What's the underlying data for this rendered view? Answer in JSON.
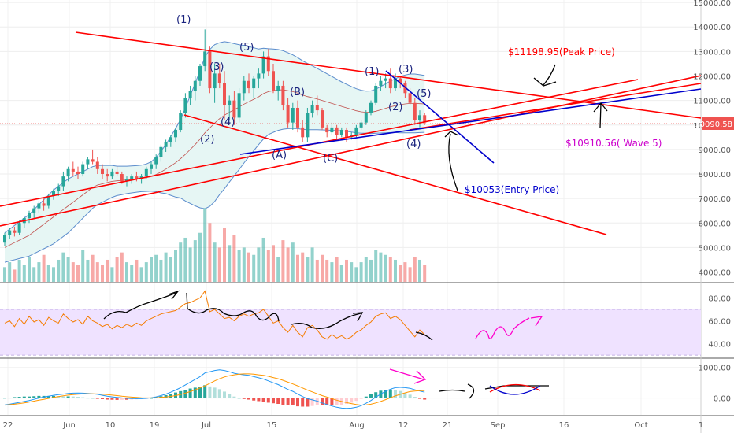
{
  "colors": {
    "up": "#26a69a",
    "down": "#ef5350",
    "trendline": "#ff0000",
    "blue_line": "#0000cc",
    "bollinger": "#5b8ccc",
    "bb_fill": "#e6f6f4",
    "rsi_band": "#efe2ff",
    "rsi_line": "#f57c00",
    "macd_line": "#2196f3",
    "signal_line": "#ff9800",
    "annotation_magenta": "#cc00cc",
    "pink_scribble": "#ff00cc"
  },
  "chart_data": [
    {
      "type": "candlestick",
      "title": "",
      "y_axis": {
        "ticks": [
          "15000.00",
          "14000.00",
          "13000.00",
          "12000.00",
          "11000.00",
          "10000.00",
          "9000.00",
          "8000.00",
          "7000.00",
          "6000.00",
          "5000.00",
          "4000.00"
        ],
        "ylim": [
          3600,
          15100
        ]
      },
      "x_axis": {
        "ticks": [
          "22",
          "Jun",
          "10",
          "19",
          "Jul",
          "15",
          "Aug",
          "12",
          "21",
          "Sep",
          "16",
          "Oct",
          "1"
        ]
      },
      "current_price": "10090.58",
      "ohlc": [
        [
          5200,
          5600,
          5050,
          5500
        ],
        [
          5500,
          5800,
          5350,
          5700
        ],
        [
          5700,
          5850,
          5450,
          5600
        ],
        [
          5600,
          6100,
          5500,
          6000
        ],
        [
          6000,
          6300,
          5800,
          6200
        ],
        [
          6200,
          6500,
          6000,
          6400
        ],
        [
          6400,
          6700,
          6200,
          6600
        ],
        [
          6600,
          6900,
          6400,
          6800
        ],
        [
          6800,
          7000,
          6500,
          6700
        ],
        [
          6700,
          7200,
          6600,
          7100
        ],
        [
          7100,
          7400,
          6950,
          7300
        ],
        [
          7300,
          7600,
          7100,
          7500
        ],
        [
          7500,
          8100,
          7300,
          7900
        ],
        [
          7900,
          8300,
          7700,
          8200
        ],
        [
          8200,
          8500,
          7900,
          8100
        ],
        [
          8100,
          8300,
          7800,
          8000
        ],
        [
          8000,
          8500,
          7900,
          8400
        ],
        [
          8400,
          8700,
          8200,
          8600
        ],
        [
          8600,
          9000,
          8400,
          8500
        ],
        [
          8500,
          8700,
          8000,
          8200
        ],
        [
          8200,
          8400,
          7800,
          8000
        ],
        [
          8000,
          8200,
          7700,
          7900
        ],
        [
          7900,
          8200,
          7800,
          8100
        ],
        [
          8100,
          8300,
          7900,
          8000
        ],
        [
          8000,
          8100,
          7600,
          7700
        ],
        [
          7700,
          7900,
          7500,
          7800
        ],
        [
          7800,
          8000,
          7600,
          7900
        ],
        [
          7900,
          8100,
          7700,
          7800
        ],
        [
          7800,
          8000,
          7600,
          7900
        ],
        [
          7900,
          8300,
          7800,
          8200
        ],
        [
          8200,
          8500,
          8000,
          8400
        ],
        [
          8400,
          8800,
          8200,
          8700
        ],
        [
          8700,
          9200,
          8500,
          9100
        ],
        [
          9100,
          9400,
          8900,
          9300
        ],
        [
          9300,
          9600,
          9100,
          9500
        ],
        [
          9500,
          9900,
          9300,
          9800
        ],
        [
          9800,
          10600,
          9700,
          10500
        ],
        [
          10500,
          11300,
          10300,
          11100
        ],
        [
          11100,
          11600,
          10800,
          11400
        ],
        [
          11400,
          12000,
          11000,
          11800
        ],
        [
          11800,
          12500,
          11600,
          12400
        ],
        [
          12400,
          13900,
          12200,
          13000
        ],
        [
          13000,
          13200,
          11300,
          11500
        ],
        [
          11500,
          12500,
          10900,
          12100
        ],
        [
          12100,
          12500,
          11500,
          11700
        ],
        [
          11700,
          12200,
          10200,
          10800
        ],
        [
          10800,
          11200,
          10200,
          11000
        ],
        [
          11000,
          11400,
          10000,
          10300
        ],
        [
          10300,
          11500,
          10100,
          11300
        ],
        [
          11300,
          12000,
          11000,
          11800
        ],
        [
          11800,
          12100,
          11300,
          11500
        ],
        [
          11500,
          12000,
          11100,
          11900
        ],
        [
          11900,
          12300,
          11500,
          12100
        ],
        [
          12100,
          13000,
          11900,
          12800
        ],
        [
          12800,
          13100,
          12000,
          12200
        ],
        [
          12200,
          12500,
          11300,
          11400
        ],
        [
          11400,
          11800,
          11000,
          11600
        ],
        [
          11600,
          11800,
          10600,
          10800
        ],
        [
          10800,
          11100,
          9900,
          10100
        ],
        [
          10100,
          10900,
          9800,
          10700
        ],
        [
          10700,
          11000,
          9700,
          9900
        ],
        [
          9900,
          10200,
          9300,
          9500
        ],
        [
          9500,
          10700,
          9300,
          10500
        ],
        [
          10500,
          11000,
          10300,
          10800
        ],
        [
          10800,
          11200,
          10400,
          10600
        ],
        [
          10600,
          10700,
          9800,
          9900
        ],
        [
          9900,
          10000,
          9500,
          9700
        ],
        [
          9700,
          10100,
          9600,
          9900
        ],
        [
          9900,
          10000,
          9400,
          9600
        ],
        [
          9600,
          9900,
          9500,
          9800
        ],
        [
          9800,
          9900,
          9300,
          9500
        ],
        [
          9500,
          9700,
          9400,
          9600
        ],
        [
          9600,
          10000,
          9500,
          9900
        ],
        [
          9900,
          10200,
          9800,
          10100
        ],
        [
          10100,
          10600,
          10000,
          10500
        ],
        [
          10500,
          11000,
          10400,
          10900
        ],
        [
          10900,
          11700,
          10800,
          11600
        ],
        [
          11600,
          12000,
          11400,
          11800
        ],
        [
          11800,
          12100,
          11500,
          11900
        ],
        [
          11900,
          12300,
          11300,
          11500
        ],
        [
          11500,
          12100,
          11400,
          11900
        ],
        [
          11900,
          12000,
          11500,
          11700
        ],
        [
          11700,
          11800,
          11100,
          11300
        ],
        [
          11300,
          11500,
          10800,
          10900
        ],
        [
          10900,
          11100,
          10000,
          10200
        ],
        [
          10200,
          10600,
          9900,
          10400
        ],
        [
          10400,
          10500,
          10000,
          10100
        ]
      ],
      "volume": [
        4.2,
        4.4,
        4.1,
        4.5,
        4.3,
        4.6,
        4.2,
        4.4,
        4.7,
        4.3,
        4.2,
        4.5,
        4.8,
        4.6,
        4.4,
        4.3,
        4.9,
        4.5,
        4.7,
        4.4,
        4.3,
        4.5,
        4.2,
        4.6,
        4.8,
        4.4,
        4.3,
        4.5,
        4.2,
        4.4,
        4.6,
        4.7,
        4.5,
        4.8,
        4.6,
        4.9,
        5.2,
        5.4,
        5.0,
        5.3,
        5.6,
        6.6,
        6.0,
        5.2,
        5.0,
        5.8,
        5.1,
        5.5,
        4.9,
        5.0,
        4.8,
        4.7,
        5.0,
        5.4,
        4.9,
        5.1,
        4.6,
        5.3,
        5.0,
        5.2,
        4.7,
        4.8,
        4.6,
        5.0,
        4.5,
        4.7,
        4.5,
        4.4,
        4.6,
        4.3,
        4.5,
        4.4,
        4.2,
        4.4,
        4.6,
        4.5,
        4.9,
        4.8,
        4.7,
        4.6,
        4.5,
        4.3,
        4.4,
        4.2,
        4.6,
        4.5,
        4.3
      ],
      "bollinger_mid": [
        5000,
        5100,
        5200,
        5300,
        5400,
        5500,
        5650,
        5800,
        5950,
        6100,
        6250,
        6400,
        6550,
        6700,
        6850,
        7000,
        7150,
        7300,
        7450,
        7550,
        7600,
        7650,
        7700,
        7720,
        7740,
        7760,
        7780,
        7800,
        7820,
        7850,
        7900,
        7980,
        8080,
        8200,
        8330,
        8460,
        8620,
        8800,
        9000,
        9200,
        9420,
        9680,
        9880,
        10080,
        10260,
        10400,
        10520,
        10620,
        10730,
        10850,
        10950,
        11050,
        11150,
        11280,
        11360,
        11400,
        11430,
        11430,
        11400,
        11360,
        11300,
        11220,
        11160,
        11110,
        11060,
        11000,
        10940,
        10880,
        10820,
        10760,
        10700,
        10640,
        10580,
        10540,
        10520,
        10520,
        10560,
        10620,
        10680,
        10740,
        10790,
        10830,
        10860,
        10880,
        10880,
        10870,
        10860
      ],
      "bollinger_width": [
        600,
        650,
        700,
        750,
        800,
        850,
        900,
        950,
        1000,
        1050,
        1100,
        1100,
        1100,
        1100,
        1050,
        1000,
        950,
        900,
        850,
        800,
        750,
        700,
        650,
        600,
        580,
        560,
        550,
        540,
        540,
        560,
        600,
        700,
        850,
        1000,
        1200,
        1400,
        1600,
        1900,
        2200,
        2500,
        2800,
        3100,
        3200,
        3200,
        3100,
        3000,
        2850,
        2700,
        2550,
        2400,
        2250,
        2100,
        1950,
        1850,
        1750,
        1700,
        1650,
        1600,
        1550,
        1500,
        1450,
        1400,
        1350,
        1300,
        1250,
        1200,
        1150,
        1100,
        1050,
        1000,
        960,
        930,
        900,
        880,
        860,
        870,
        900,
        950,
        1000,
        1050,
        1100,
        1150,
        1180,
        1200,
        1200,
        1180,
        1160
      ],
      "annotations": {
        "waves": [
          "(1)",
          "(2)",
          "(3)",
          "(4)",
          "(5)",
          "(A)",
          "(B)",
          "(C)",
          "(1)",
          "(2)",
          "(3)",
          "(4)",
          "(5)"
        ],
        "peak_price": "$11198.95(Peak Price)",
        "wave5": "$10910.56( Wave 5)",
        "entry": "$10053(Entry Price)"
      }
    },
    {
      "type": "line",
      "title": "",
      "y_axis": {
        "ticks": [
          "80.00",
          "60.00",
          "40.00"
        ],
        "ylim": [
          28,
          92
        ]
      },
      "band": [
        30,
        70
      ],
      "values": [
        58,
        60,
        55,
        62,
        57,
        64,
        59,
        61,
        56,
        63,
        60,
        58,
        66,
        62,
        59,
        61,
        57,
        64,
        60,
        58,
        55,
        57,
        53,
        56,
        54,
        57,
        55,
        58,
        56,
        60,
        62,
        64,
        66,
        67,
        68,
        69,
        72,
        75,
        76,
        78,
        80,
        86,
        68,
        70,
        66,
        62,
        63,
        60,
        64,
        66,
        64,
        66,
        67,
        70,
        64,
        58,
        60,
        54,
        50,
        56,
        50,
        46,
        54,
        56,
        52,
        46,
        44,
        48,
        45,
        47,
        44,
        46,
        50,
        52,
        56,
        59,
        64,
        66,
        67,
        62,
        64,
        61,
        56,
        51,
        46,
        52,
        48
      ]
    },
    {
      "type": "bar",
      "title": "",
      "y_axis": {
        "ticks": [
          "1000.00",
          "0.00"
        ],
        "ylim": [
          -550,
          1250
        ]
      },
      "macd": [
        -220,
        -200,
        -170,
        -140,
        -110,
        -80,
        -40,
        0,
        30,
        60,
        90,
        110,
        130,
        150,
        160,
        165,
        160,
        150,
        140,
        120,
        90,
        60,
        40,
        20,
        5,
        -10,
        -15,
        -20,
        -20,
        -10,
        10,
        40,
        80,
        130,
        190,
        260,
        340,
        430,
        520,
        610,
        700,
        820,
        860,
        900,
        920,
        900,
        860,
        810,
        780,
        760,
        740,
        700,
        660,
        620,
        560,
        500,
        440,
        360,
        280,
        220,
        130,
        50,
        -20,
        -60,
        -100,
        -160,
        -210,
        -260,
        -300,
        -330,
        -340,
        -330,
        -300,
        -250,
        -170,
        -80,
        30,
        130,
        220,
        290,
        340,
        350,
        340,
        320,
        270,
        230,
        190
      ],
      "signal": [
        -230,
        -215,
        -200,
        -180,
        -160,
        -130,
        -100,
        -70,
        -40,
        -10,
        20,
        50,
        75,
        95,
        110,
        125,
        135,
        140,
        140,
        135,
        125,
        110,
        95,
        80,
        60,
        45,
        30,
        20,
        10,
        5,
        5,
        10,
        20,
        35,
        55,
        80,
        115,
        160,
        210,
        270,
        330,
        400,
        480,
        560,
        630,
        690,
        730,
        760,
        780,
        790,
        790,
        780,
        760,
        740,
        710,
        670,
        630,
        580,
        520,
        460,
        400,
        330,
        260,
        200,
        140,
        80,
        30,
        -20,
        -70,
        -110,
        -150,
        -180,
        -210,
        -230,
        -220,
        -200,
        -160,
        -110,
        -50,
        10,
        70,
        120,
        170,
        210,
        230,
        240,
        240
      ],
      "histogram": [
        10,
        15,
        30,
        40,
        50,
        50,
        60,
        70,
        70,
        70,
        70,
        60,
        55,
        55,
        50,
        40,
        25,
        10,
        0,
        -15,
        -35,
        -50,
        -55,
        -60,
        -55,
        -55,
        -45,
        -40,
        -30,
        -15,
        5,
        30,
        60,
        95,
        135,
        180,
        225,
        270,
        310,
        340,
        370,
        420,
        380,
        340,
        290,
        210,
        130,
        50,
        0,
        -30,
        -50,
        -80,
        -100,
        -120,
        -150,
        -170,
        -190,
        -220,
        -240,
        -240,
        -270,
        -280,
        -280,
        -260,
        -240,
        -240,
        -240,
        -240,
        -230,
        -220,
        -190,
        -150,
        -90,
        -20,
        50,
        120,
        190,
        240,
        270,
        280,
        270,
        230,
        170,
        110,
        40,
        -10,
        -50
      ]
    }
  ]
}
